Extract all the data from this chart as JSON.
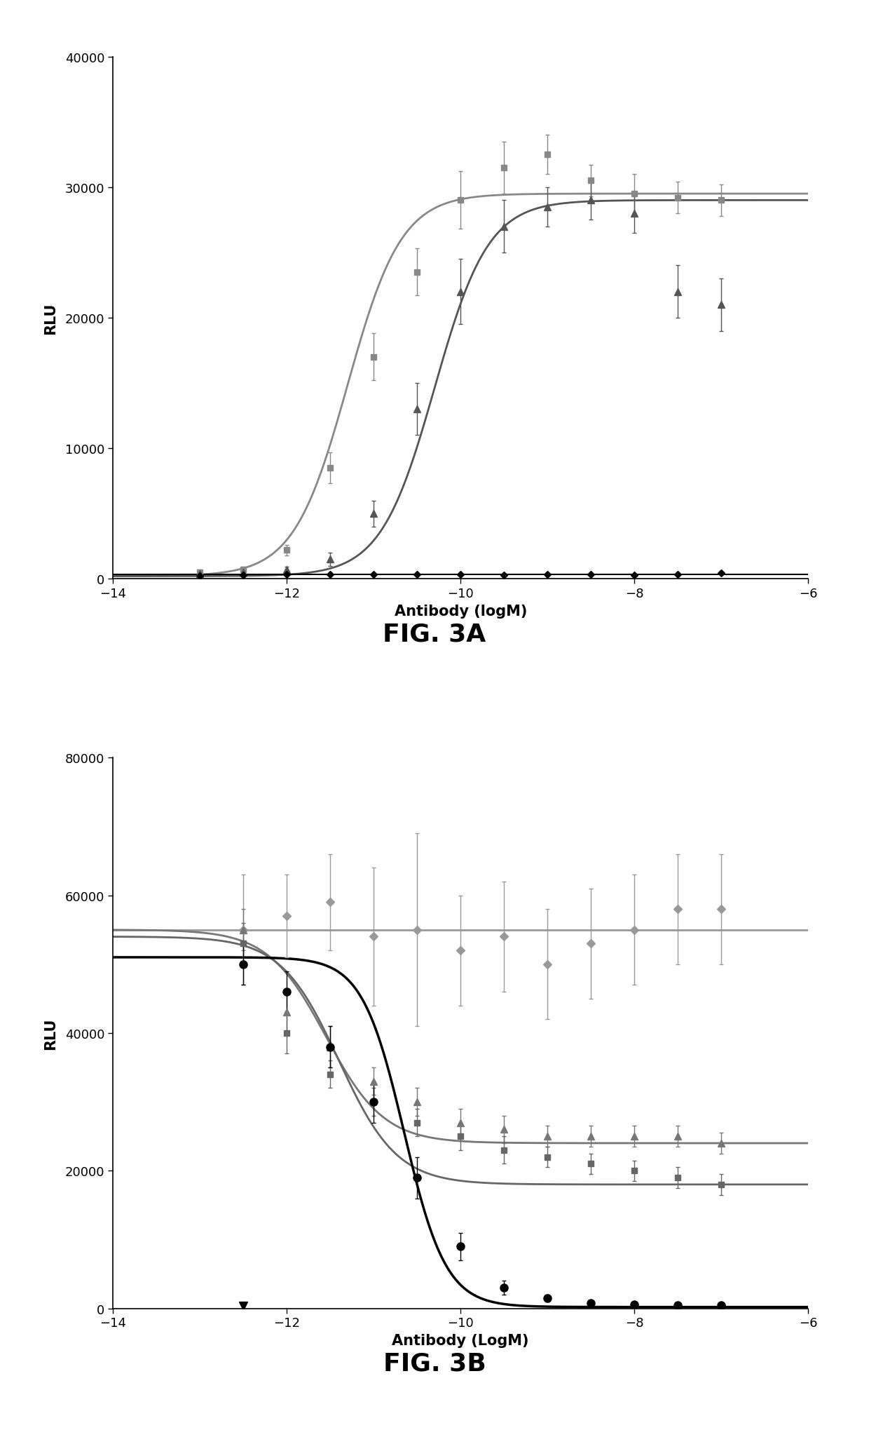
{
  "fig3a": {
    "xlabel": "Antibody (logM)",
    "ylabel": "RLU",
    "ylim": [
      0,
      40000
    ],
    "xlim": [
      -14,
      -6
    ],
    "xticks": [
      -14,
      -12,
      -10,
      -8,
      -6
    ],
    "yticks": [
      0,
      10000,
      20000,
      30000,
      40000
    ],
    "series": [
      {
        "label": "series1_squares",
        "color": "#888888",
        "marker": "s",
        "markersize": 6,
        "linewidth": 2.0,
        "x": [
          -13.0,
          -12.5,
          -12.0,
          -11.5,
          -11.0,
          -10.5,
          -10.0,
          -9.5,
          -9.0,
          -8.5,
          -8.0,
          -7.5,
          -7.0
        ],
        "y": [
          500,
          700,
          2200,
          8500,
          17000,
          23500,
          29000,
          31500,
          32500,
          30500,
          29500,
          29200,
          29000
        ],
        "yerr": [
          200,
          200,
          400,
          1200,
          1800,
          1800,
          2200,
          2000,
          1500,
          1200,
          1500,
          1200,
          1200
        ],
        "curve_ec50": -11.3,
        "curve_top": 29500,
        "curve_bottom": 200,
        "curve_hill": 1.4
      },
      {
        "label": "series2_triangles",
        "color": "#555555",
        "marker": "^",
        "markersize": 7,
        "linewidth": 2.0,
        "x": [
          -13.0,
          -12.5,
          -12.0,
          -11.5,
          -11.0,
          -10.5,
          -10.0,
          -9.5,
          -9.0,
          -8.5,
          -8.0,
          -7.5,
          -7.0
        ],
        "y": [
          400,
          500,
          700,
          1500,
          5000,
          13000,
          22000,
          27000,
          28500,
          29000,
          28000,
          22000,
          21000
        ],
        "yerr": [
          150,
          150,
          250,
          500,
          1000,
          2000,
          2500,
          2000,
          1500,
          1500,
          1500,
          2000,
          2000
        ],
        "curve_ec50": -10.3,
        "curve_top": 29000,
        "curve_bottom": 200,
        "curve_hill": 1.4
      },
      {
        "label": "series3_diamonds",
        "color": "#000000",
        "marker": "D",
        "markersize": 5,
        "linewidth": 1.5,
        "x": [
          -13.0,
          -12.5,
          -12.0,
          -11.5,
          -11.0,
          -10.5,
          -10.0,
          -9.5,
          -9.0,
          -8.5,
          -8.0,
          -7.5,
          -7.0
        ],
        "y": [
          250,
          300,
          350,
          350,
          350,
          350,
          350,
          300,
          350,
          350,
          300,
          350,
          450
        ],
        "yerr": [
          80,
          80,
          80,
          80,
          80,
          80,
          80,
          80,
          80,
          80,
          80,
          80,
          80
        ],
        "curve_ec50": null,
        "flat_y": 350
      }
    ]
  },
  "fig3b": {
    "xlabel": "Antibody (LogM)",
    "ylabel": "RLU",
    "ylim": [
      0,
      80000
    ],
    "xlim": [
      -14,
      -6
    ],
    "xticks": [
      -14,
      -12,
      -10,
      -8,
      -6
    ],
    "yticks": [
      0,
      20000,
      40000,
      60000,
      80000
    ],
    "series": [
      {
        "label": "series1_diamonds_flat",
        "color": "#999999",
        "marker": "D",
        "markersize": 6,
        "linewidth": 2.0,
        "x": [
          -12.5,
          -12.0,
          -11.5,
          -11.0,
          -10.5,
          -10.0,
          -9.5,
          -9.0,
          -8.5,
          -8.0,
          -7.5,
          -7.0
        ],
        "y": [
          55000,
          57000,
          59000,
          54000,
          55000,
          52000,
          54000,
          50000,
          53000,
          55000,
          58000,
          58000
        ],
        "yerr": [
          8000,
          6000,
          7000,
          10000,
          14000,
          8000,
          8000,
          8000,
          8000,
          8000,
          8000,
          8000
        ],
        "curve_ec50": null,
        "flat_y": 55000
      },
      {
        "label": "series2_triangles_decrease",
        "color": "#777777",
        "marker": "^",
        "markersize": 7,
        "linewidth": 2.0,
        "x": [
          -12.5,
          -12.0,
          -11.5,
          -11.0,
          -10.5,
          -10.0,
          -9.5,
          -9.0,
          -8.5,
          -8.0,
          -7.5,
          -7.0
        ],
        "y": [
          55000,
          43000,
          38000,
          33000,
          30000,
          27000,
          26000,
          25000,
          25000,
          25000,
          25000,
          24000
        ],
        "yerr": [
          3000,
          3000,
          3000,
          2000,
          2000,
          2000,
          2000,
          1500,
          1500,
          1500,
          1500,
          1500
        ],
        "curve_ec50": -11.55,
        "curve_top": 55000,
        "curve_bottom": 24000,
        "curve_hill": 1.3
      },
      {
        "label": "series3_squares_decrease",
        "color": "#666666",
        "marker": "s",
        "markersize": 6,
        "linewidth": 2.0,
        "x": [
          -12.5,
          -12.0,
          -11.5,
          -11.0,
          -10.5,
          -10.0,
          -9.5,
          -9.0,
          -8.5,
          -8.0,
          -7.5,
          -7.0
        ],
        "y": [
          53000,
          40000,
          34000,
          30000,
          27000,
          25000,
          23000,
          22000,
          21000,
          20000,
          19000,
          18000
        ],
        "yerr": [
          3000,
          3000,
          2000,
          2000,
          2000,
          2000,
          2000,
          1500,
          1500,
          1500,
          1500,
          1500
        ],
        "curve_ec50": -11.4,
        "curve_top": 54000,
        "curve_bottom": 18000,
        "curve_hill": 1.3
      },
      {
        "label": "series4_circles_black",
        "color": "#000000",
        "marker": "o",
        "markersize": 8,
        "linewidth": 2.5,
        "x": [
          -12.5,
          -12.0,
          -11.5,
          -11.0,
          -10.5,
          -10.0,
          -9.5,
          -9.0,
          -8.5,
          -8.0,
          -7.5,
          -7.0
        ],
        "y": [
          50000,
          46000,
          38000,
          30000,
          19000,
          9000,
          3000,
          1500,
          800,
          600,
          500,
          500
        ],
        "yerr": [
          3000,
          3000,
          3000,
          3000,
          3000,
          2000,
          1000,
          500,
          300,
          200,
          200,
          200
        ],
        "curve_ec50": -10.65,
        "curve_top": 51000,
        "curve_bottom": 200,
        "curve_hill": 1.8
      },
      {
        "label": "series5_invtriangle_black",
        "color": "#000000",
        "marker": "v",
        "markersize": 9,
        "linewidth": 1.5,
        "x": [
          -12.5
        ],
        "y": [
          400
        ],
        "yerr": [
          0
        ],
        "curve_ec50": null,
        "flat_y": null
      }
    ]
  },
  "fig3a_label": "FIG. 3A",
  "fig3b_label": "FIG. 3B",
  "background_color": "#ffffff",
  "tick_fontsize": 13,
  "axis_label_fontsize": 15,
  "fig_label_fontsize": 26
}
